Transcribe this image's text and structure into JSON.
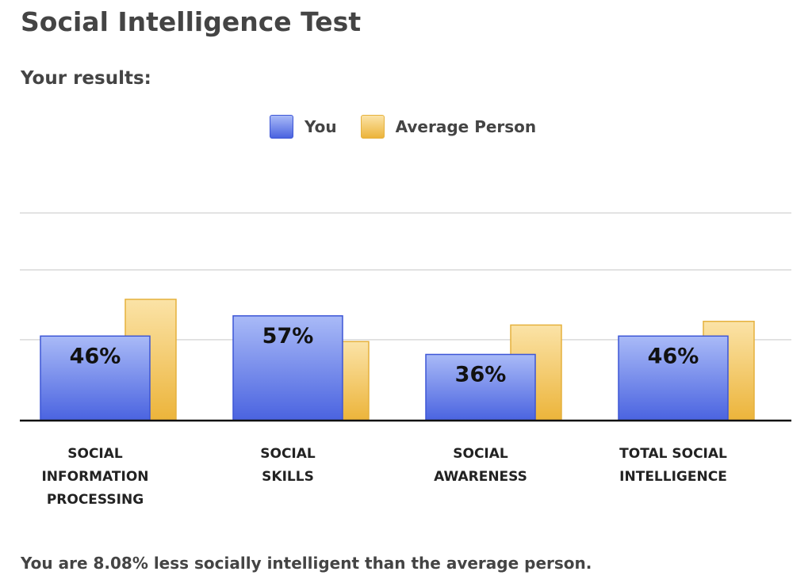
{
  "page": {
    "title": "Social Intelligence Test",
    "subtitle": "Your results:",
    "summary": "You are 8.08% less socially intelligent than the average person."
  },
  "legend": {
    "you_label": "You",
    "average_label": "Average Person"
  },
  "chart_data": {
    "type": "bar",
    "title": "",
    "xlabel": "",
    "ylabel": "",
    "ylim": [
      0,
      100
    ],
    "grid": true,
    "legend_placement": "top-center",
    "categories": [
      [
        "SOCIAL",
        "INFORMATION",
        "PROCESSING"
      ],
      [
        "SOCIAL",
        "SKILLS"
      ],
      [
        "SOCIAL",
        "AWARENESS"
      ],
      [
        "TOTAL SOCIAL",
        "INTELLIGENCE"
      ]
    ],
    "series": [
      {
        "name": "You",
        "values": [
          46,
          57,
          36,
          46
        ],
        "labels": [
          "46%",
          "57%",
          "36%",
          "46%"
        ],
        "color_top": "#a9baf7",
        "color_bottom": "#4a63e0",
        "stroke": "#3d56d6"
      },
      {
        "name": "Average Person",
        "values": [
          66,
          43,
          52,
          54
        ],
        "color_top": "#fbe3a7",
        "color_bottom": "#ecb43a",
        "stroke": "#e5b13d"
      }
    ]
  }
}
